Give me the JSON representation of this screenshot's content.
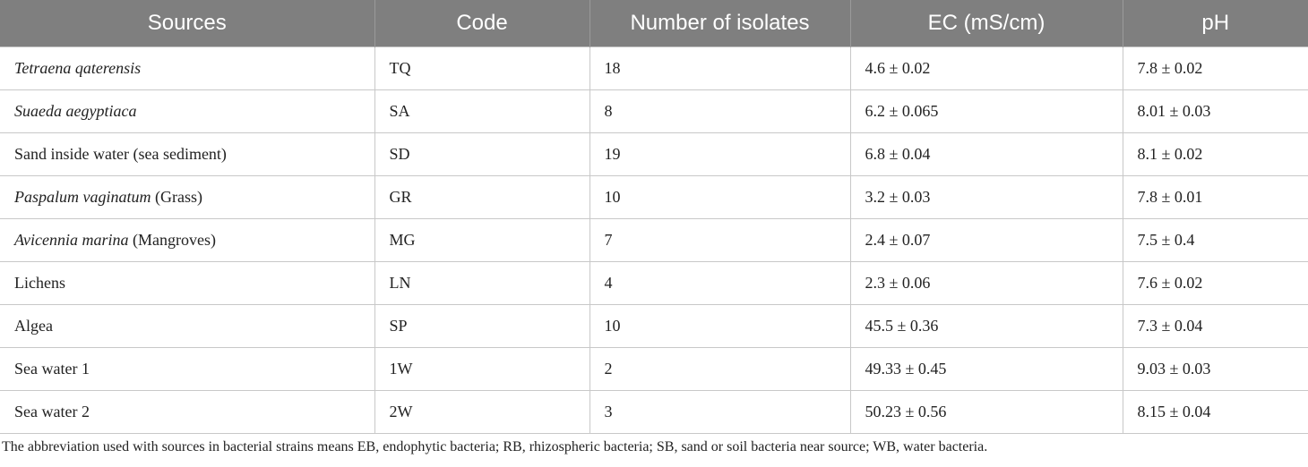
{
  "table": {
    "columns": [
      "Sources",
      "Code",
      "Number of isolates",
      "EC (mS/cm)",
      "pH"
    ],
    "rows": [
      {
        "source_italic": "Tetraena qaterensis",
        "source_rest": "",
        "code": "TQ",
        "isolates": "18",
        "ec": "4.6 ± 0.02",
        "ph": "7.8 ± 0.02"
      },
      {
        "source_italic": "Suaeda aegyptiaca",
        "source_rest": "",
        "code": "SA",
        "isolates": "8",
        "ec": "6.2 ± 0.065",
        "ph": "8.01 ± 0.03"
      },
      {
        "source_italic": "",
        "source_rest": "Sand inside water (sea sediment)",
        "code": "SD",
        "isolates": "19",
        "ec": "6.8 ± 0.04",
        "ph": "8.1 ± 0.02"
      },
      {
        "source_italic": "Paspalum vaginatum",
        "source_rest": " (Grass)",
        "code": "GR",
        "isolates": "10",
        "ec": "3.2 ± 0.03",
        "ph": "7.8 ± 0.01"
      },
      {
        "source_italic": "Avicennia marina",
        "source_rest": " (Mangroves)",
        "code": "MG",
        "isolates": "7",
        "ec": "2.4 ± 0.07",
        "ph": "7.5 ± 0.4"
      },
      {
        "source_italic": "",
        "source_rest": "Lichens",
        "code": "LN",
        "isolates": "4",
        "ec": "2.3 ± 0.06",
        "ph": "7.6 ± 0.02"
      },
      {
        "source_italic": "",
        "source_rest": "Algea",
        "code": "SP",
        "isolates": "10",
        "ec": "45.5 ± 0.36",
        "ph": "7.3 ± 0.04"
      },
      {
        "source_italic": "",
        "source_rest": "Sea water 1",
        "code": "1W",
        "isolates": "2",
        "ec": "49.33 ± 0.45",
        "ph": "9.03 ± 0.03"
      },
      {
        "source_italic": "",
        "source_rest": "Sea water 2",
        "code": "2W",
        "isolates": "3",
        "ec": "50.23 ± 0.56",
        "ph": "8.15 ± 0.04"
      }
    ]
  },
  "footnote": "The abbreviation used with sources in bacterial strains means EB, endophytic bacteria; RB, rhizospheric bacteria; SB, sand or soil bacteria near source; WB, water bacteria."
}
